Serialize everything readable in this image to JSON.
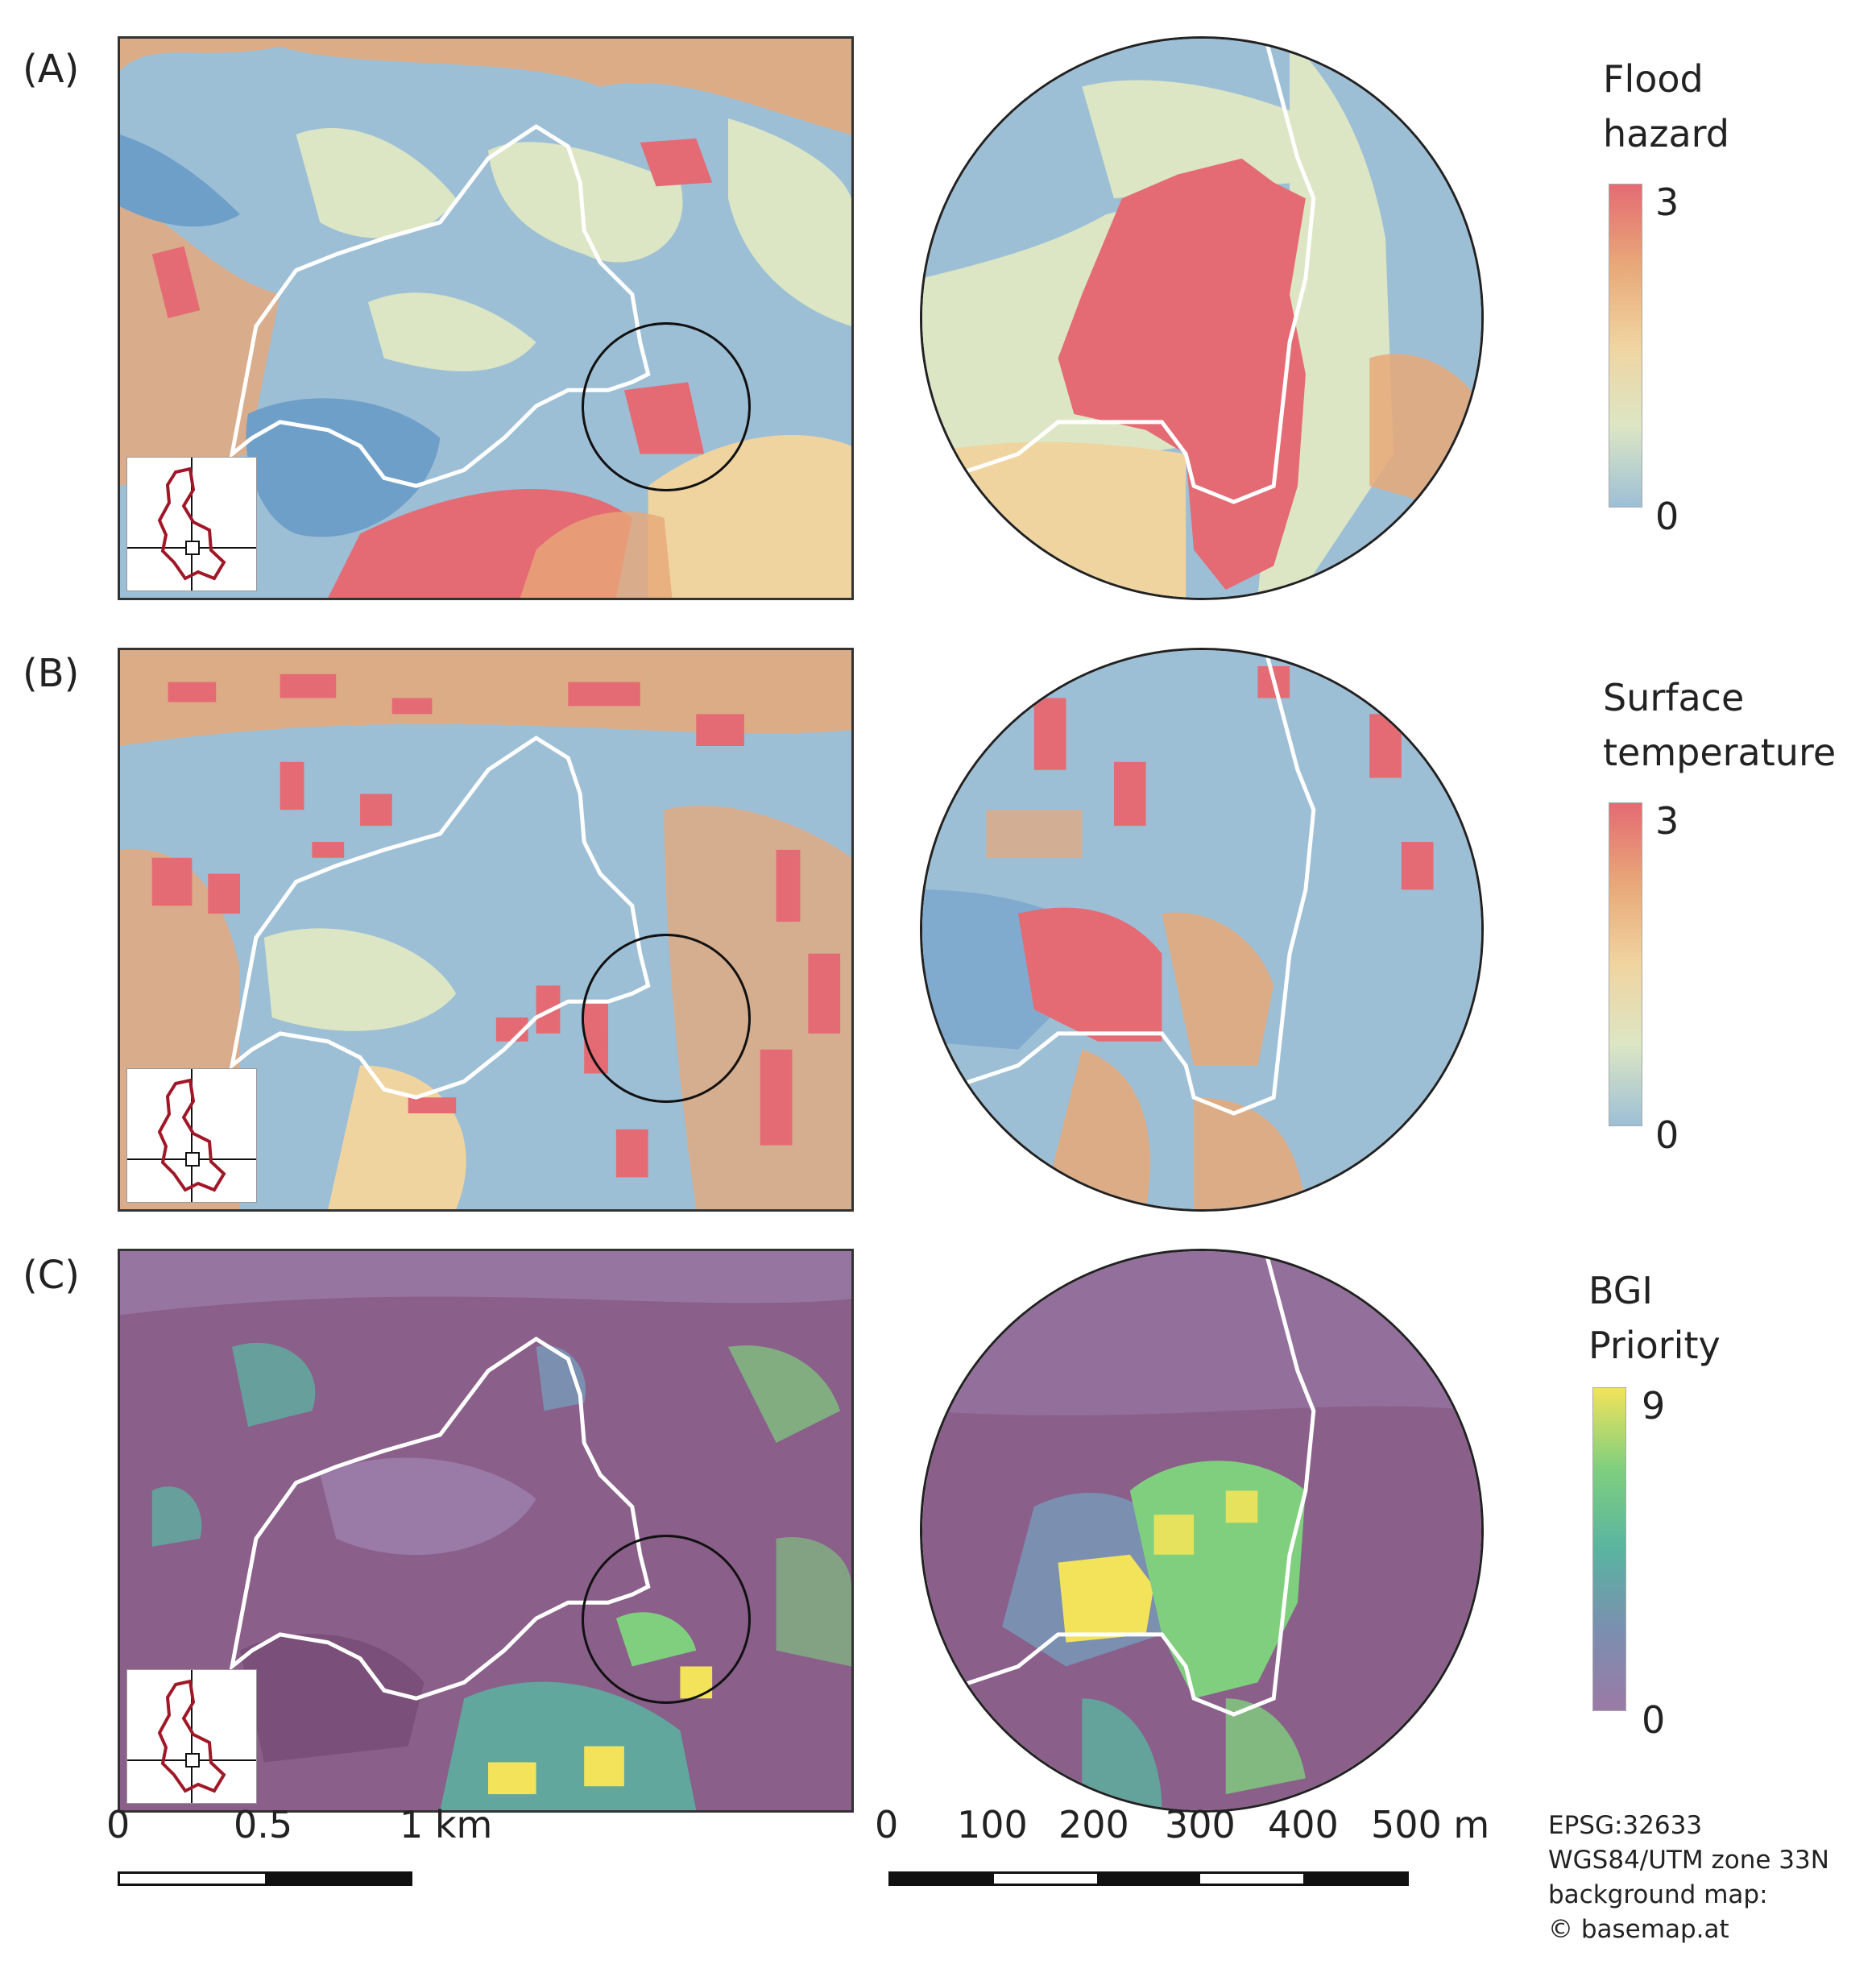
{
  "panels": [
    {
      "id": "A",
      "label": "(A)",
      "legend_title_1": "Flood",
      "legend_title_2": "hazard",
      "legend_max": "3",
      "legend_min": "0",
      "colors": [
        "#e46b73",
        "#e8a878",
        "#f0d4a0",
        "#dce6c4",
        "#9dbfd6",
        "#6d9fc9"
      ]
    },
    {
      "id": "B",
      "label": "(B)",
      "legend_title_1": "Surface",
      "legend_title_2": "temperature",
      "legend_max": "3",
      "legend_min": "0",
      "colors": [
        "#e46b73",
        "#e8a878",
        "#f0d4a0",
        "#dce6c4",
        "#9dbfd6",
        "#6d9fc9"
      ]
    },
    {
      "id": "C",
      "label": "(C)",
      "legend_title_1": "BGI",
      "legend_title_2": "Priority",
      "legend_max": "9",
      "legend_min": "0",
      "colors": [
        "#f2e35a",
        "#7fcf7e",
        "#59b4a0",
        "#7b8fb0",
        "#9a7aa6",
        "#8a5f8a"
      ]
    }
  ],
  "scale_left": {
    "labels": [
      "0",
      "0.5",
      "1 km"
    ]
  },
  "scale_right": {
    "labels": [
      "0",
      "100",
      "200",
      "300",
      "400",
      "500 m"
    ]
  },
  "credits": [
    "EPSG:32633",
    "WGS84/UTM zone 33N",
    "background map:",
    "© basemap.at"
  ]
}
